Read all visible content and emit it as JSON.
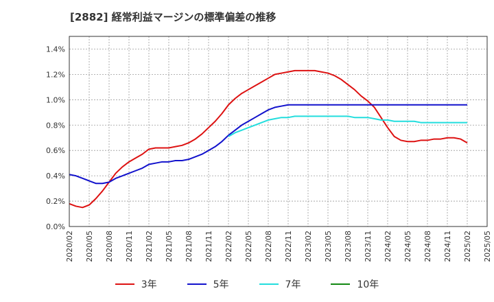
{
  "chart_data": {
    "type": "line",
    "title": "[2882]  経常利益マージンの標準偏差の推移",
    "x_tick_labels": [
      "2020/02",
      "2020/05",
      "2020/08",
      "2020/11",
      "2021/02",
      "2021/05",
      "2021/08",
      "2021/11",
      "2022/02",
      "2022/05",
      "2022/08",
      "2022/11",
      "2023/02",
      "2023/05",
      "2023/08",
      "2023/11",
      "2024/02",
      "2024/05",
      "2024/08",
      "2024/11",
      "2025/02",
      "2025/05"
    ],
    "y_tick_labels": [
      "0.0%",
      "0.2%",
      "0.4%",
      "0.6%",
      "0.8%",
      "1.0%",
      "1.2%",
      "1.4%"
    ],
    "ylim": [
      0,
      1.5
    ],
    "grid": true,
    "legend_position": "bottom",
    "series": [
      {
        "name": "3年",
        "color": "#dd1111",
        "start": "2020/02",
        "values": [
          0.18,
          0.16,
          0.15,
          0.17,
          0.22,
          0.28,
          0.35,
          0.42,
          0.47,
          0.51,
          0.54,
          0.57,
          0.61,
          0.62,
          0.62,
          0.62,
          0.63,
          0.64,
          0.66,
          0.69,
          0.73,
          0.78,
          0.83,
          0.89,
          0.96,
          1.01,
          1.05,
          1.08,
          1.11,
          1.14,
          1.17,
          1.2,
          1.21,
          1.22,
          1.23,
          1.23,
          1.23,
          1.23,
          1.22,
          1.21,
          1.19,
          1.16,
          1.12,
          1.08,
          1.03,
          0.99,
          0.94,
          0.86,
          0.78,
          0.71,
          0.68,
          0.67,
          0.67,
          0.68,
          0.68,
          0.69,
          0.69,
          0.7,
          0.7,
          0.69,
          0.66
        ]
      },
      {
        "name": "5年",
        "color": "#1111cc",
        "start": "2020/02",
        "values": [
          0.41,
          0.4,
          0.38,
          0.36,
          0.34,
          0.34,
          0.35,
          0.38,
          0.4,
          0.42,
          0.44,
          0.46,
          0.49,
          0.5,
          0.51,
          0.51,
          0.52,
          0.52,
          0.53,
          0.55,
          0.57,
          0.6,
          0.63,
          0.67,
          0.72,
          0.76,
          0.8,
          0.83,
          0.86,
          0.89,
          0.92,
          0.94,
          0.95,
          0.96,
          0.96,
          0.96,
          0.96,
          0.96,
          0.96,
          0.96,
          0.96,
          0.96,
          0.96,
          0.96,
          0.96,
          0.96,
          0.96,
          0.96,
          0.96,
          0.96,
          0.96,
          0.96,
          0.96,
          0.96,
          0.96,
          0.96,
          0.96,
          0.96,
          0.96,
          0.96,
          0.96
        ]
      },
      {
        "name": "7年",
        "color": "#22dddd",
        "start": "2022/02",
        "values": [
          0.71,
          0.74,
          0.76,
          0.78,
          0.8,
          0.82,
          0.84,
          0.85,
          0.86,
          0.86,
          0.87,
          0.87,
          0.87,
          0.87,
          0.87,
          0.87,
          0.87,
          0.87,
          0.87,
          0.86,
          0.86,
          0.86,
          0.85,
          0.84,
          0.84,
          0.83,
          0.83,
          0.83,
          0.83,
          0.82,
          0.82,
          0.82,
          0.82,
          0.82,
          0.82,
          0.82,
          0.82
        ]
      },
      {
        "name": "10年",
        "color": "#118811",
        "start": "2025/02",
        "values": []
      }
    ]
  }
}
